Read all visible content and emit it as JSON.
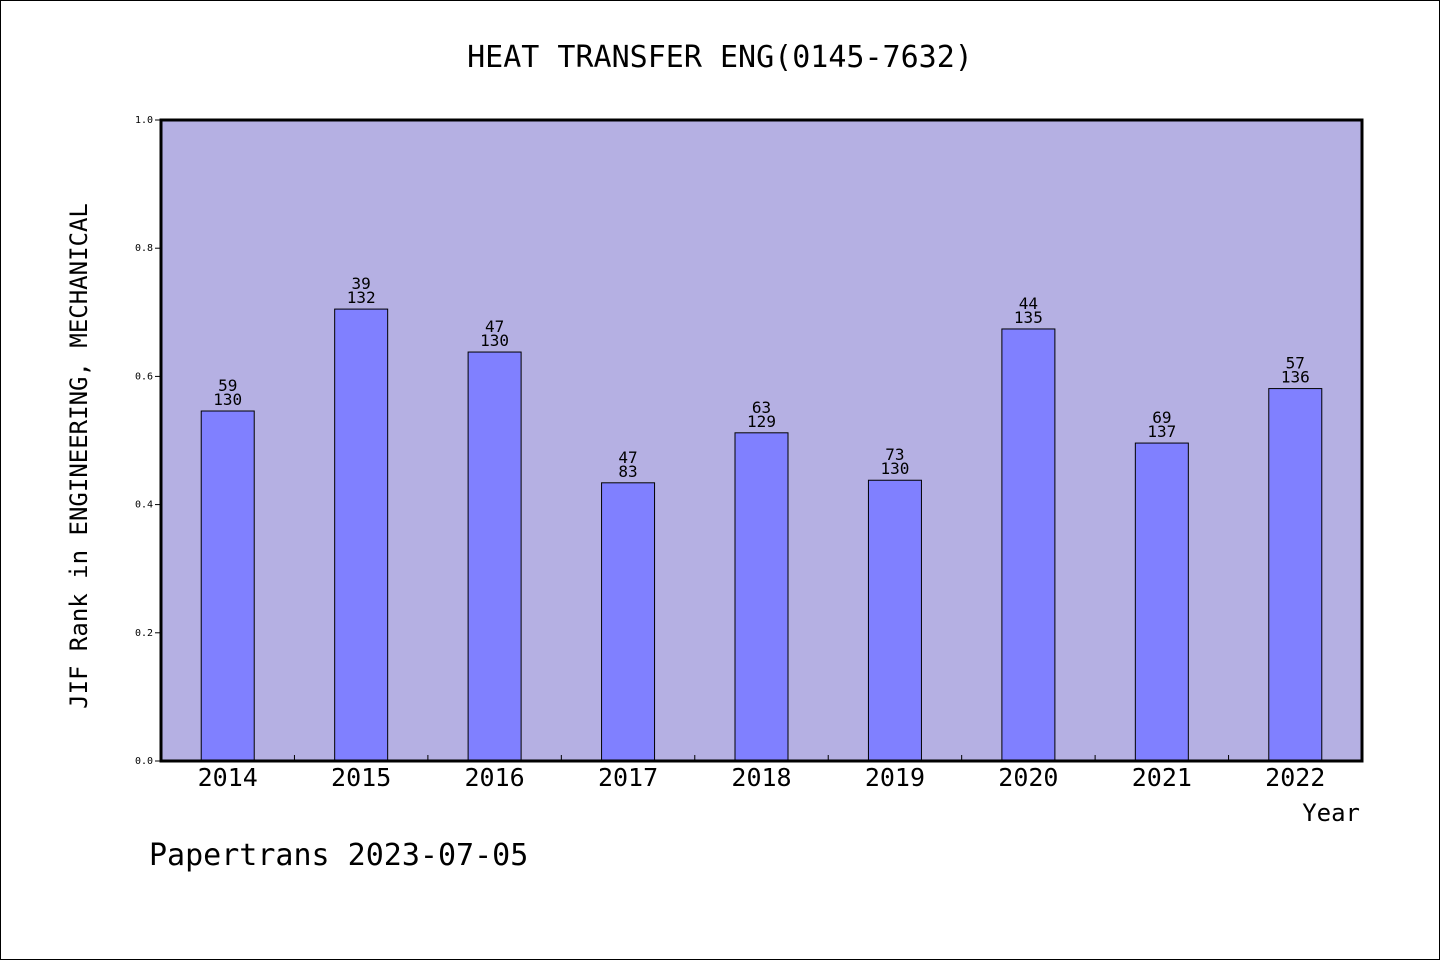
{
  "chart_data": {
    "type": "bar",
    "title": "HEAT TRANSFER ENG(0145-7632)",
    "xlabel": "Year",
    "ylabel": "JIF Rank in ENGINEERING, MECHANICAL",
    "categories": [
      "2014",
      "2015",
      "2016",
      "2017",
      "2018",
      "2019",
      "2020",
      "2021",
      "2022"
    ],
    "values": [
      0.546,
      0.705,
      0.638,
      0.434,
      0.512,
      0.438,
      0.674,
      0.496,
      0.581
    ],
    "rank": [
      "59",
      "39",
      "47",
      "47",
      "63",
      "73",
      "44",
      "69",
      "57"
    ],
    "total": [
      "130",
      "132",
      "130",
      "83",
      "129",
      "130",
      "135",
      "137",
      "136"
    ],
    "ylim": [
      0,
      1.0
    ],
    "yticks": [
      "0.0",
      "0.2",
      "0.4",
      "0.6",
      "0.8",
      "1.0"
    ],
    "grid": false,
    "colors": {
      "plot_background": "#b5b0e3",
      "bar_fill": "#8080ff",
      "bar_stroke": "#000000"
    }
  },
  "footer": {
    "text": "Papertrans 2023-07-05"
  }
}
